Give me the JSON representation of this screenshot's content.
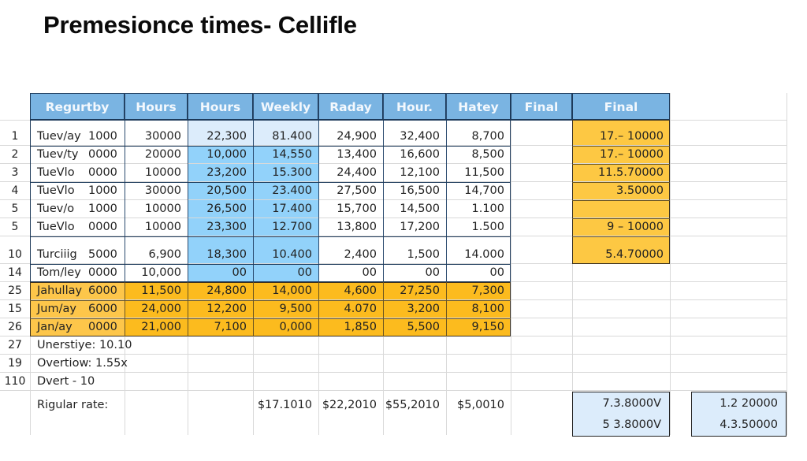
{
  "title": "Premesionce times- Cellifle",
  "colors": {
    "header_bg": "#7ab4e2",
    "header_text": "#f3f8fd",
    "highlight_blue": "#92d2fa",
    "highlight_blue_light": "#dcecfb",
    "highlight_orange": "#fcbb1e",
    "final_orange": "#fdc843",
    "border_dark": "#1d3a5a"
  },
  "headers": [
    "Regurtby",
    "Hours",
    "Hours",
    "Weekly",
    "Raday",
    "Hour.",
    "Hatey",
    "Final",
    "Final"
  ],
  "rows": [
    {
      "num": "1",
      "label": "Tuev/ay",
      "code": "1000",
      "values": [
        "30000",
        "22,300",
        "81.400",
        "24,900",
        "32,400",
        "8,700"
      ],
      "final": "",
      "final2": "17.– 10000"
    },
    {
      "num": "2",
      "label": "Tuev/ty",
      "code": "0000",
      "values": [
        "20000",
        "10,000",
        "14,550",
        "13,400",
        "16,600",
        "8,500"
      ],
      "final": "",
      "final2": "17.– 10000"
    },
    {
      "num": "3",
      "label": "TueVlo",
      "code": "0000",
      "values": [
        "10000",
        "23,200",
        "15.300",
        "24,400",
        "12,100",
        "11,500"
      ],
      "final": "",
      "final2": "11.5.70000"
    },
    {
      "num": "4",
      "label": "TueVlo",
      "code": "1000",
      "values": [
        "30000",
        "20,500",
        "23.400",
        "27,500",
        "16,500",
        "14,700"
      ],
      "final": "",
      "final2": "3.50000"
    },
    {
      "num": "5",
      "label": "Tuev/o",
      "code": "1000",
      "values": [
        "10000",
        "26,500",
        "17.400",
        "15,700",
        "14,500",
        "1.100"
      ],
      "final": "",
      "final2": ""
    },
    {
      "num": "5",
      "label": "TueVlo",
      "code": "0000",
      "values": [
        "10000",
        "23,300",
        "12.700",
        "13,800",
        "17,200",
        "1.500"
      ],
      "final": "",
      "final2": "9 – 10000"
    },
    {
      "num": "10",
      "label": "Turciiig",
      "code": "5000",
      "values": [
        "6,900",
        "18,300",
        "10.400",
        "2,400",
        "1,500",
        "14.000"
      ],
      "final": "",
      "final2": "5.4.70000"
    },
    {
      "num": "14",
      "label": "Tom/ley",
      "code": "0000",
      "values": [
        "10,000",
        "00",
        "00",
        "00",
        "00",
        "00"
      ],
      "final": "",
      "final2": ""
    },
    {
      "num": "25",
      "label": "Jahullay",
      "code": "6000",
      "values": [
        "11,500",
        "24,800",
        "14,000",
        "4,600",
        "27,250",
        "7,300"
      ],
      "final": "",
      "final2": ""
    },
    {
      "num": "15",
      "label": "Jum/ay",
      "code": "6000",
      "values": [
        "24,000",
        "12,200",
        "9,500",
        "4.070",
        "3,200",
        "8,100"
      ],
      "final": "",
      "final2": ""
    },
    {
      "num": "26",
      "label": "Jan/ay",
      "code": "0000",
      "values": [
        "21,000",
        "7,100",
        "0,000",
        "1,850",
        "5,500",
        "9,150"
      ],
      "final": "",
      "final2": ""
    }
  ],
  "notes": [
    {
      "num": "27",
      "text": "Unerstiye: 10.10"
    },
    {
      "num": "19",
      "text": "Overtiow: 1.55x"
    },
    {
      "num": "110",
      "text": "Dvert - 10"
    }
  ],
  "rate_row": {
    "label": "Rigular rate:",
    "values": [
      "$17.1010",
      "$22,2010",
      "$55,2010",
      "$5,0010"
    ]
  },
  "summary": {
    "box1": [
      "7.3.8000V",
      "5 3.8000V"
    ],
    "box2": [
      "1.2 20000",
      "4.3.50000"
    ]
  }
}
